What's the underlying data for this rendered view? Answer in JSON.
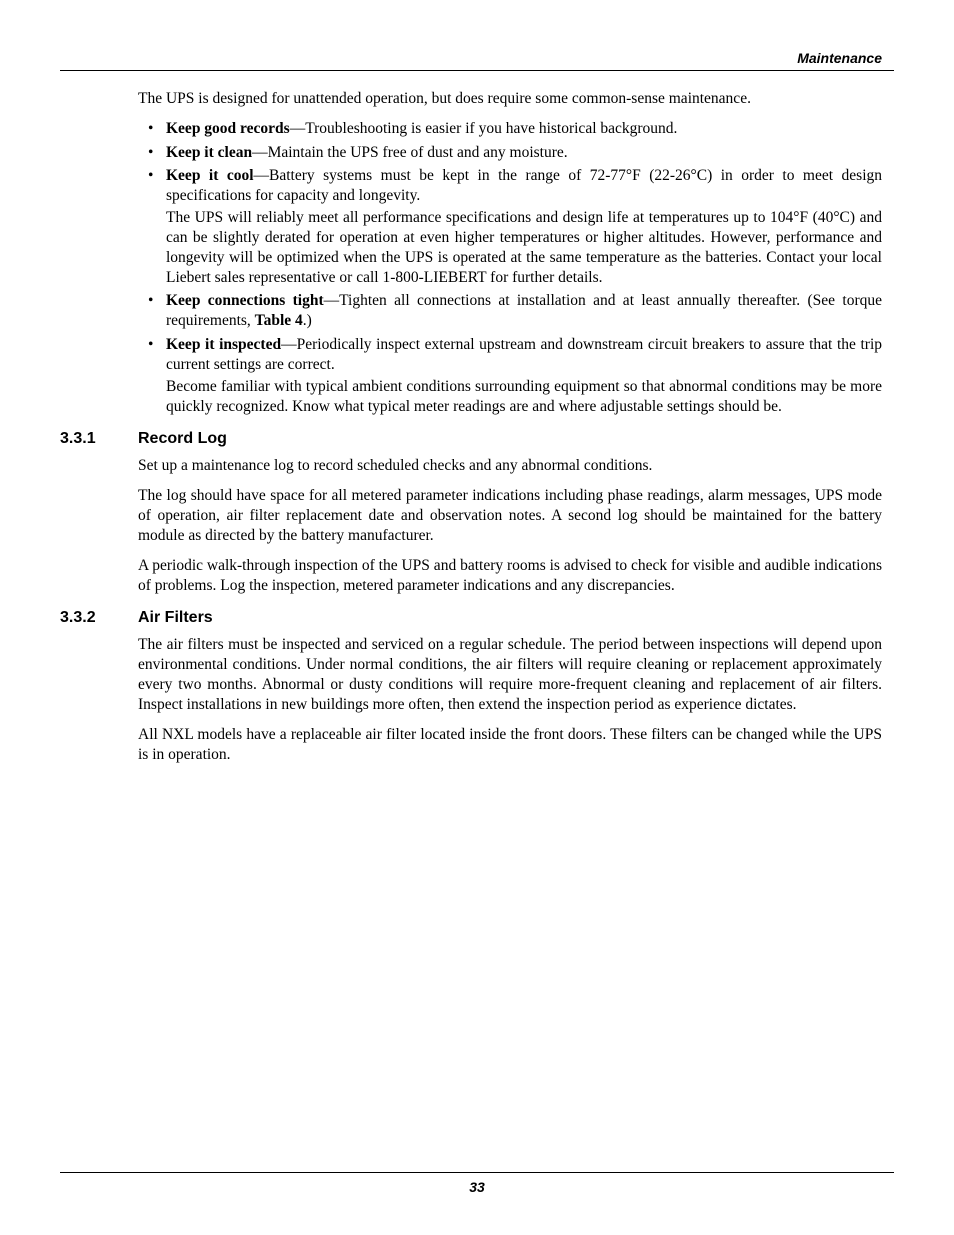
{
  "header": {
    "section": "Maintenance"
  },
  "footer": {
    "page_number": "33"
  },
  "intro": "The UPS is designed for unattended operation, but does require some common-sense maintenance.",
  "bullets": [
    {
      "bold": "Keep good records",
      "rest": "—Troubleshooting is easier if you have historical background."
    },
    {
      "bold": "Keep it clean",
      "rest": "—Maintain the UPS free of dust and any moisture."
    },
    {
      "bold": "Keep it cool",
      "rest": "—Battery systems must be kept in the range of 72-77°F (22-26°C) in order to meet design specifications for capacity and longevity.",
      "sub": "The UPS will reliably meet all performance specifications and design life at temperatures up to 104°F (40°C) and can be slightly derated for operation at even higher temperatures or higher altitudes. However, performance and longevity will be optimized when the UPS is operated at the same temperature as the batteries. Contact your local Liebert sales representative or call 1-800-LIEBERT for further details."
    },
    {
      "bold": "Keep connections tight",
      "rest_pre": "—Tighten all connections at installation and at least annually thereafter. (See torque requirements, ",
      "table_ref": "Table 4",
      "rest_post": ".)"
    },
    {
      "bold": "Keep it inspected",
      "rest": "—Periodically inspect external upstream and downstream circuit breakers to assure that the trip current settings are correct.",
      "sub": "Become familiar with typical ambient conditions surrounding equipment so that abnormal conditions may be more quickly recognized. Know what typical meter readings are and where adjustable settings should be."
    }
  ],
  "s331": {
    "num": "3.3.1",
    "title": "Record Log",
    "p1": "Set up a maintenance log to record scheduled checks and any abnormal conditions.",
    "p2": "The log should have space for all metered parameter indications including phase readings, alarm messages, UPS mode of operation, air filter replacement date and observation notes. A second log should be maintained for the battery module as directed by the battery manufacturer.",
    "p3": "A periodic walk-through inspection of the UPS and battery rooms is advised to check for visible and audible indications of problems. Log the inspection, metered parameter indications and any discrepancies."
  },
  "s332": {
    "num": "3.3.2",
    "title": "Air Filters",
    "p1": "The air filters must be inspected and serviced on a regular schedule. The period between inspections will depend upon environmental conditions. Under normal conditions, the air filters will require cleaning or replacement approximately every two months. Abnormal or dusty conditions will require more-frequent cleaning and replacement of air filters. Inspect installations in new buildings more often, then extend the inspection period as experience dictates.",
    "p2": "All NXL models have a replaceable air filter located inside the front doors. These filters can be changed while the UPS is in operation."
  }
}
